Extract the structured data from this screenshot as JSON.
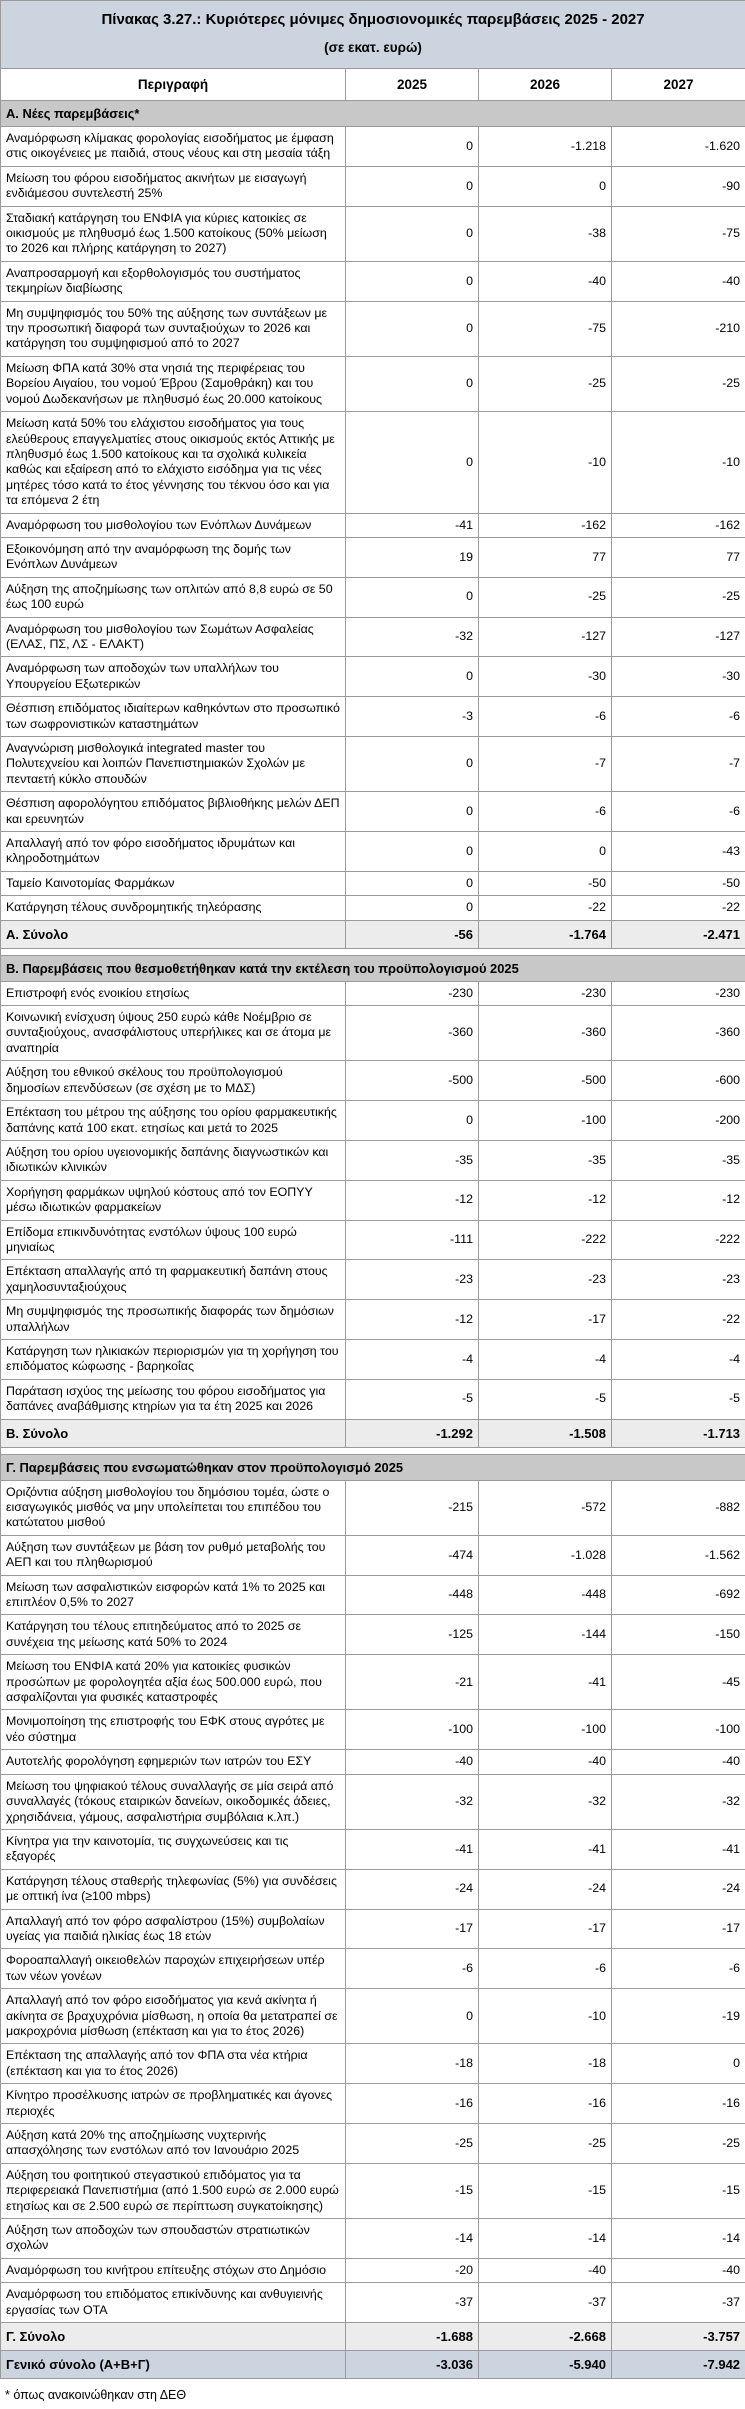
{
  "table": {
    "title": "Πίνακας 3.27.: Κυριότερες μόνιμες δημοσιονομικές παρεμβάσεις 2025 - 2027",
    "subtitle": "(σε εκατ. ευρώ)",
    "columns": [
      "Περιγραφή",
      "2025",
      "2026",
      "2027"
    ],
    "sections": [
      {
        "header": "Α. Νέες παρεμβάσεις*",
        "rows": [
          {
            "label": "Αναμόρφωση κλίμακας φορολογίας εισοδήματος με έμφαση στις οικογένειες με παιδιά, στους νέους και στη μεσαία τάξη",
            "values": [
              "0",
              "-1.218",
              "-1.620"
            ]
          },
          {
            "label": "Μείωση του φόρου εισοδήματος ακινήτων με εισαγωγή ενδιάμεσου συντελεστή 25%",
            "values": [
              "0",
              "0",
              "-90"
            ]
          },
          {
            "label": "Σταδιακή κατάργηση του ΕΝΦΙΑ για κύριες κατοικίες σε οικισμούς με πληθυσμό έως 1.500 κατοίκους (50% μείωση το 2026 και πλήρης κατάργηση το 2027)",
            "values": [
              "0",
              "-38",
              "-75"
            ]
          },
          {
            "label": "Αναπροσαρμογή και εξορθολογισμός του συστήματος τεκμηρίων διαβίωσης",
            "values": [
              "0",
              "-40",
              "-40"
            ]
          },
          {
            "label": "Μη συμψηφισμός του 50% της αύξησης των συντάξεων με την προσωπική διαφορά των συνταξιούχων το 2026 και κατάργηση του συμψηφισμού από το 2027",
            "values": [
              "0",
              "-75",
              "-210"
            ]
          },
          {
            "label": "Μείωση ΦΠΑ κατά 30% στα νησιά της περιφέρειας του Βορείου Αιγαίου, του νομού Έβρου (Σαμοθράκη) και του νομού Δωδεκανήσων με πληθυσμό έως 20.000 κατοίκους",
            "values": [
              "0",
              "-25",
              "-25"
            ]
          },
          {
            "label": "Μείωση κατά 50% του ελάχιστου εισοδήματος για τους ελεύθερους επαγγελματίες στους οικισμούς εκτός Αττικής με πληθυσμό έως 1.500 κατοίκους και τα σχολικά κυλικεία καθώς και εξαίρεση από το ελάχιστο εισόδημα για τις νέες μητέρες τόσο κατά το έτος γέννησης του τέκνου όσο και για τα επόμενα 2 έτη",
            "values": [
              "0",
              "-10",
              "-10"
            ]
          },
          {
            "label": "Αναμόρφωση του μισθολογίου των Ενόπλων Δυνάμεων",
            "values": [
              "-41",
              "-162",
              "-162"
            ]
          },
          {
            "label": "Εξοικονόμηση από την αναμόρφωση της δομής των Ενόπλων Δυνάμεων",
            "values": [
              "19",
              "77",
              "77"
            ]
          },
          {
            "label": "Αύξηση της αποζημίωσης των οπλιτών από 8,8 ευρώ σε 50 έως 100 ευρώ",
            "values": [
              "0",
              "-25",
              "-25"
            ]
          },
          {
            "label": "Αναμόρφωση του μισθολογίου των Σωμάτων Ασφαλείας (ΕΛΑΣ, ΠΣ, ΛΣ - ΕΛΑΚΤ)",
            "values": [
              "-32",
              "-127",
              "-127"
            ]
          },
          {
            "label": "Αναμόρφωση των αποδοχών των υπαλλήλων του Υπουργείου Εξωτερικών",
            "values": [
              "0",
              "-30",
              "-30"
            ]
          },
          {
            "label": "Θέσπιση επιδόματος ιδιαίτερων καθηκόντων στο προσωπικό των σωφρονιστικών καταστημάτων",
            "values": [
              "-3",
              "-6",
              "-6"
            ]
          },
          {
            "label": "Αναγνώριση μισθολογικά integrated master του Πολυτεχνείου και λοιπών Πανεπιστημιακών Σχολών με πενταετή κύκλο σπουδών",
            "values": [
              "0",
              "-7",
              "-7"
            ]
          },
          {
            "label": "Θέσπιση αφορολόγητου επιδόματος βιβλιοθήκης μελών ΔΕΠ και ερευνητών",
            "values": [
              "0",
              "-6",
              "-6"
            ]
          },
          {
            "label": "Απαλλαγή από τον φόρο εισοδήματος ιδρυμάτων και κληροδοτημάτων",
            "values": [
              "0",
              "0",
              "-43"
            ]
          },
          {
            "label": "Ταμείο Καινοτομίας Φαρμάκων",
            "values": [
              "0",
              "-50",
              "-50"
            ]
          },
          {
            "label": "Κατάργηση τέλους συνδρομητικής τηλεόρασης",
            "values": [
              "0",
              "-22",
              "-22"
            ]
          }
        ],
        "total": {
          "label": "Α. Σύνολο",
          "values": [
            "-56",
            "-1.764",
            "-2.471"
          ]
        }
      },
      {
        "header": "Β. Παρεμβάσεις που θεσμοθετήθηκαν κατά την εκτέλεση του προϋπολογισμού 2025",
        "rows": [
          {
            "label": "Επιστροφή ενός ενοικίου ετησίως",
            "values": [
              "-230",
              "-230",
              "-230"
            ]
          },
          {
            "label": "Κοινωνική ενίσχυση ύψους 250 ευρώ κάθε Νοέμβριο σε συνταξιούχους, ανασφάλιστους υπερήλικες και σε άτομα με αναπηρία",
            "values": [
              "-360",
              "-360",
              "-360"
            ]
          },
          {
            "label": "Αύξηση του εθνικού σκέλους του προϋπολογισμού δημοσίων επενδύσεων (σε σχέση με το ΜΔΣ)",
            "values": [
              "-500",
              "-500",
              "-600"
            ]
          },
          {
            "label": "Επέκταση του μέτρου της αύξησης του ορίου φαρμακευτικής δαπάνης κατά 100 εκατ. ετησίως και μετά το 2025",
            "values": [
              "0",
              "-100",
              "-200"
            ]
          },
          {
            "label": "Αύξηση του ορίου υγειονομικής δαπάνης διαγνωστικών και ιδιωτικών κλινικών",
            "values": [
              "-35",
              "-35",
              "-35"
            ]
          },
          {
            "label": "Χορήγηση φαρμάκων υψηλού κόστους από τον ΕΟΠΥΥ μέσω ιδιωτικών φαρμακείων",
            "values": [
              "-12",
              "-12",
              "-12"
            ]
          },
          {
            "label": "Επίδομα επικινδυνότητας ενστόλων ύψους 100 ευρώ μηνιαίως",
            "values": [
              "-111",
              "-222",
              "-222"
            ]
          },
          {
            "label": "Επέκταση απαλλαγής από τη φαρμακευτική δαπάνη στους χαμηλοσυνταξιούχους",
            "values": [
              "-23",
              "-23",
              "-23"
            ]
          },
          {
            "label": "Μη συμψηφισμός της προσωπικής διαφοράς των δημόσιων υπαλλήλων",
            "values": [
              "-12",
              "-17",
              "-22"
            ]
          },
          {
            "label": "Κατάργηση των ηλικιακών περιορισμών για τη χορήγηση του επιδόματος κώφωσης - βαρηκοΐας",
            "values": [
              "-4",
              "-4",
              "-4"
            ]
          },
          {
            "label": "Παράταση ισχύος της μείωσης του φόρου εισοδήματος για δαπάνες αναβάθμισης κτηρίων για τα έτη 2025 και 2026",
            "values": [
              "-5",
              "-5",
              "-5"
            ]
          }
        ],
        "total": {
          "label": "Β. Σύνολο",
          "values": [
            "-1.292",
            "-1.508",
            "-1.713"
          ]
        }
      },
      {
        "header": "Γ. Παρεμβάσεις που ενσωματώθηκαν στον προϋπολογισμό 2025",
        "rows": [
          {
            "label": "Οριζόντια αύξηση μισθολογίου του δημόσιου τομέα, ώστε ο εισαγωγικός μισθός να μην υπολείπεται του επιπέδου του κατώτατου μισθού",
            "values": [
              "-215",
              "-572",
              "-882"
            ]
          },
          {
            "label": "Αύξηση των συντάξεων με βάση τον ρυθμό μεταβολής του ΑΕΠ και του πληθωρισμού",
            "values": [
              "-474",
              "-1.028",
              "-1.562"
            ]
          },
          {
            "label": "Μείωση των ασφαλιστικών εισφορών κατά 1% το 2025 και επιπλέον 0,5% το 2027",
            "values": [
              "-448",
              "-448",
              "-692"
            ]
          },
          {
            "label": "Κατάργηση του τέλους επιτηδεύματος από το 2025 σε συνέχεια της μείωσης κατά 50% το 2024",
            "values": [
              "-125",
              "-144",
              "-150"
            ]
          },
          {
            "label": "Μείωση του ΕΝΦΙΑ κατά 20% για κατοικίες φυσικών προσώπων με φορολογητέα αξία έως 500.000 ευρώ, που ασφαλίζονται για φυσικές καταστροφές",
            "values": [
              "-21",
              "-41",
              "-45"
            ]
          },
          {
            "label": "Μονιμοποίηση της επιστροφής του ΕΦΚ στους αγρότες με νέο σύστημα",
            "values": [
              "-100",
              "-100",
              "-100"
            ]
          },
          {
            "label": "Αυτοτελής φορολόγηση εφημεριών των ιατρών του ΕΣΥ",
            "values": [
              "-40",
              "-40",
              "-40"
            ]
          },
          {
            "label": "Μείωση του ψηφιακού τέλους συναλλαγής σε μία σειρά από συναλλαγές (τόκους εταιρικών δανείων, οικοδομικές άδειες, χρησιδάνεια, γάμους, ασφαλιστήρια συμβόλαια κ.λπ.)",
            "values": [
              "-32",
              "-32",
              "-32"
            ]
          },
          {
            "label": "Κίνητρα για την καινοτομία, τις συγχωνεύσεις και τις εξαγορές",
            "values": [
              "-41",
              "-41",
              "-41"
            ]
          },
          {
            "label": "Κατάργηση τέλους σταθερής τηλεφωνίας (5%) για συνδέσεις με οπτική ίνα (≥100 mbps)",
            "values": [
              "-24",
              "-24",
              "-24"
            ]
          },
          {
            "label": "Απαλλαγή από τον φόρο ασφαλίστρου (15%) συμβολαίων υγείας για παιδιά ηλικίας έως 18 ετών",
            "values": [
              "-17",
              "-17",
              "-17"
            ]
          },
          {
            "label": "Φοροαπαλλαγή οικειοθελών παροχών επιχειρήσεων υπέρ των νέων γονέων",
            "values": [
              "-6",
              "-6",
              "-6"
            ]
          },
          {
            "label": "Απαλλαγή από τον φόρο εισοδήματος για κενά ακίνητα ή ακίνητα σε βραχυχρόνια μίσθωση, η οποία θα μετατραπεί σε μακροχρόνια μίσθωση (επέκταση και για το έτος 2026)",
            "values": [
              "0",
              "-10",
              "-19"
            ]
          },
          {
            "label": "Επέκταση της απαλλαγής από τον ΦΠΑ στα νέα κτήρια (επέκταση και για το έτος 2026)",
            "values": [
              "-18",
              "-18",
              "0"
            ]
          },
          {
            "label": "Κίνητρο προσέλκυσης ιατρών σε προβληματικές και άγονες περιοχές",
            "values": [
              "-16",
              "-16",
              "-16"
            ]
          },
          {
            "label": "Αύξηση κατά 20% της αποζημίωσης νυχτερινής απασχόλησης των ενστόλων από τον Ιανουάριο 2025",
            "values": [
              "-25",
              "-25",
              "-25"
            ]
          },
          {
            "label": "Αύξηση του φοιτητικού στεγαστικού επιδόματος για τα περιφερειακά Πανεπιστήμια (από 1.500 ευρώ σε 2.000 ευρώ ετησίως και σε 2.500 ευρώ σε περίπτωση συγκατοίκησης)",
            "values": [
              "-15",
              "-15",
              "-15"
            ]
          },
          {
            "label": "Αύξηση των αποδοχών των σπουδαστών στρατιωτικών σχολών",
            "values": [
              "-14",
              "-14",
              "-14"
            ]
          },
          {
            "label": "Αναμόρφωση του κινήτρου επίτευξης στόχων στο Δημόσιο",
            "values": [
              "-20",
              "-40",
              "-40"
            ]
          },
          {
            "label": "Αναμόρφωση του επιδόματος επικίνδυνης και ανθυγιεινής εργασίας των ΟΤΑ",
            "values": [
              "-37",
              "-37",
              "-37"
            ]
          }
        ],
        "total": {
          "label": "Γ. Σύνολο",
          "values": [
            "-1.688",
            "-2.668",
            "-3.757"
          ]
        }
      }
    ],
    "grand_total": {
      "label": "Γενικό σύνολο (Α+Β+Γ)",
      "values": [
        "-3.036",
        "-5.940",
        "-7.942"
      ]
    },
    "footnote": "* όπως ανακοινώθηκαν στη ΔΕΘ"
  },
  "colors": {
    "band_bg": "#ccd5df",
    "section_bg": "#c8c8c8",
    "total_bg": "#ececec",
    "border": "#9a9a9a",
    "heavy_border": "#777777",
    "text": "#000000"
  }
}
